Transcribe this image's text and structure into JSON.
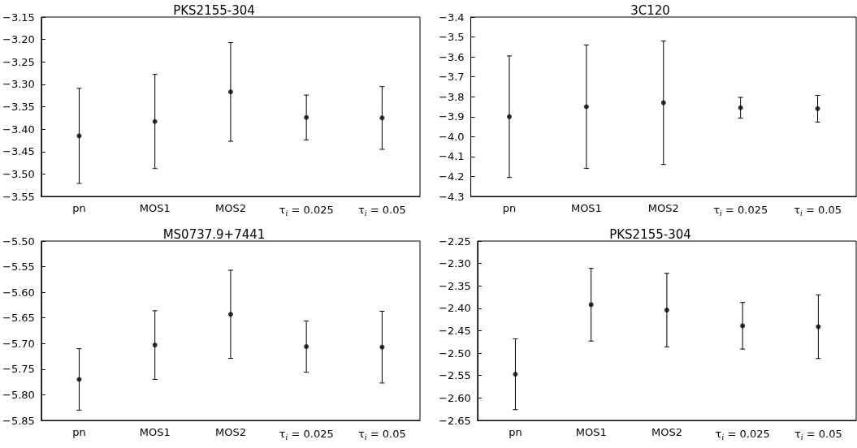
{
  "chart_data": [
    {
      "type": "scatter",
      "title": "PKS2155-304",
      "categories": [
        "pn",
        "MOS1",
        "MOS2",
        "τ$_{i}$ = 0.025",
        "τ$_{i}$ = 0.05"
      ],
      "marker": "circle",
      "grid": false,
      "ylim": [
        -3.55,
        -3.15
      ],
      "yticks": [
        -3.55,
        {
          "value": -3.5,
          "label": "−3.50"
        },
        -3.45,
        {
          "value": -3.4,
          "label": "−3.40"
        },
        -3.35,
        {
          "value": -3.3,
          "label": "−3.30"
        },
        -3.25,
        {
          "value": -3.2,
          "label": "−3.20"
        },
        -3.15
      ],
      "series": [
        {
          "color": "#000000",
          "values": [
            -3.415,
            -3.383,
            -3.317,
            -3.374,
            -3.375
          ],
          "errors": [
            0.106,
            0.105,
            0.11,
            0.05,
            0.07
          ]
        }
      ]
    },
    {
      "type": "scatter",
      "title": "3C120",
      "categories": [
        "pn",
        "MOS1",
        "MOS2",
        "τ$_{i}$ = 0.025",
        "τ$_{i}$ = 0.05"
      ],
      "marker": "circle",
      "grid": false,
      "ylim": [
        -4.3,
        -3.4
      ],
      "yticks": [
        -4.3,
        -4.2,
        -4.1,
        {
          "value": -4,
          "label": "−4.0"
        },
        -3.9,
        -3.8,
        -3.7,
        -3.6,
        -3.5,
        -3.4
      ],
      "series": [
        {
          "color": "#000000",
          "values": [
            -3.9,
            -3.85,
            -3.83,
            -3.855,
            -3.86
          ],
          "errors": [
            0.305,
            0.31,
            0.31,
            0.052,
            0.067
          ]
        }
      ]
    },
    {
      "type": "scatter",
      "title": "MS0737.9+7441",
      "categories": [
        "pn",
        "MOS1",
        "MOS2",
        "τ$_{i}$ = 0.025",
        "τ$_{i}$ = 0.05"
      ],
      "marker": "circle",
      "grid": false,
      "ylim": [
        -5.85,
        -5.5
      ],
      "yticks": [
        -5.85,
        {
          "value": -5.8,
          "label": "−5.80"
        },
        -5.75,
        {
          "value": -5.7,
          "label": "−5.70"
        },
        -5.65,
        {
          "value": -5.6,
          "label": "−5.60"
        },
        -5.55,
        {
          "value": -5.5,
          "label": "−5.50"
        }
      ],
      "series": [
        {
          "color": "#000000",
          "values": [
            -5.77,
            -5.703,
            -5.643,
            -5.706,
            -5.707
          ],
          "errors": [
            0.06,
            0.067,
            0.086,
            0.05,
            0.07
          ]
        }
      ]
    },
    {
      "type": "scatter",
      "title": "PKS2155-304",
      "categories": [
        "pn",
        "MOS1",
        "MOS2",
        "τ$_{i}$ = 0.025",
        "τ$_{i}$ = 0.05"
      ],
      "marker": "circle",
      "grid": false,
      "ylim": [
        -2.65,
        -2.25
      ],
      "yticks": [
        -2.65,
        {
          "value": -2.6,
          "label": "−2.60"
        },
        -2.55,
        {
          "value": -2.5,
          "label": "−2.50"
        },
        -2.45,
        {
          "value": -2.4,
          "label": "−2.40"
        },
        -2.35,
        {
          "value": -2.3,
          "label": "−2.30"
        },
        -2.25
      ],
      "series": [
        {
          "color": "#000000",
          "values": [
            -2.547,
            -2.392,
            -2.404,
            -2.439,
            -2.441
          ],
          "errors": [
            0.079,
            0.081,
            0.082,
            0.052,
            0.071
          ]
        }
      ]
    }
  ]
}
